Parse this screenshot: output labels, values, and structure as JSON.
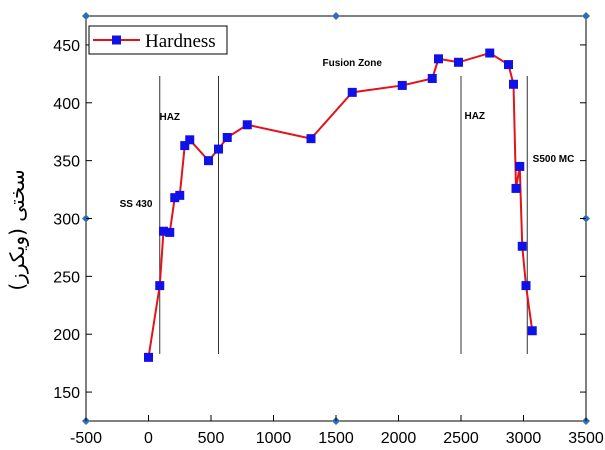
{
  "chart_data": {
    "type": "line",
    "title": "",
    "xlabel": "",
    "ylabel": "سختی (ویکرز)",
    "xlim": [
      -500,
      3500
    ],
    "ylim": [
      125,
      475
    ],
    "xticks": [
      -500,
      0,
      500,
      1000,
      1500,
      2000,
      2500,
      3000,
      3500
    ],
    "yticks": [
      150,
      200,
      250,
      300,
      350,
      400,
      450
    ],
    "legend": {
      "position": "top-left",
      "entries": [
        "Hardness"
      ]
    },
    "series": [
      {
        "name": "Hardness",
        "color": "#e3121b",
        "marker_color": "#1010e8",
        "x": [
          0,
          90,
          120,
          170,
          210,
          250,
          290,
          330,
          480,
          560,
          630,
          790,
          1300,
          1630,
          2030,
          2270,
          2320,
          2480,
          2730,
          2880,
          2920,
          2940,
          2970,
          2990,
          3020,
          3070
        ],
        "y": [
          180,
          242,
          289,
          288,
          318,
          320,
          363,
          368,
          350,
          360,
          370,
          381,
          369,
          409,
          415,
          421,
          438,
          435,
          443,
          433,
          416,
          326,
          345,
          276,
          242,
          203
        ]
      }
    ],
    "vertical_lines_x": [
      90,
      560,
      2500,
      3030
    ],
    "annotations": [
      {
        "text": "SS 430",
        "x": -100,
        "y": 310
      },
      {
        "text": "HAZ",
        "x": 170,
        "y": 385
      },
      {
        "text": "Fusion Zone",
        "x": 1630,
        "y": 432
      },
      {
        "text": "HAZ",
        "x": 2610,
        "y": 386
      },
      {
        "text": "S500 MC",
        "x": 3240,
        "y": 349
      }
    ],
    "grid": false
  }
}
